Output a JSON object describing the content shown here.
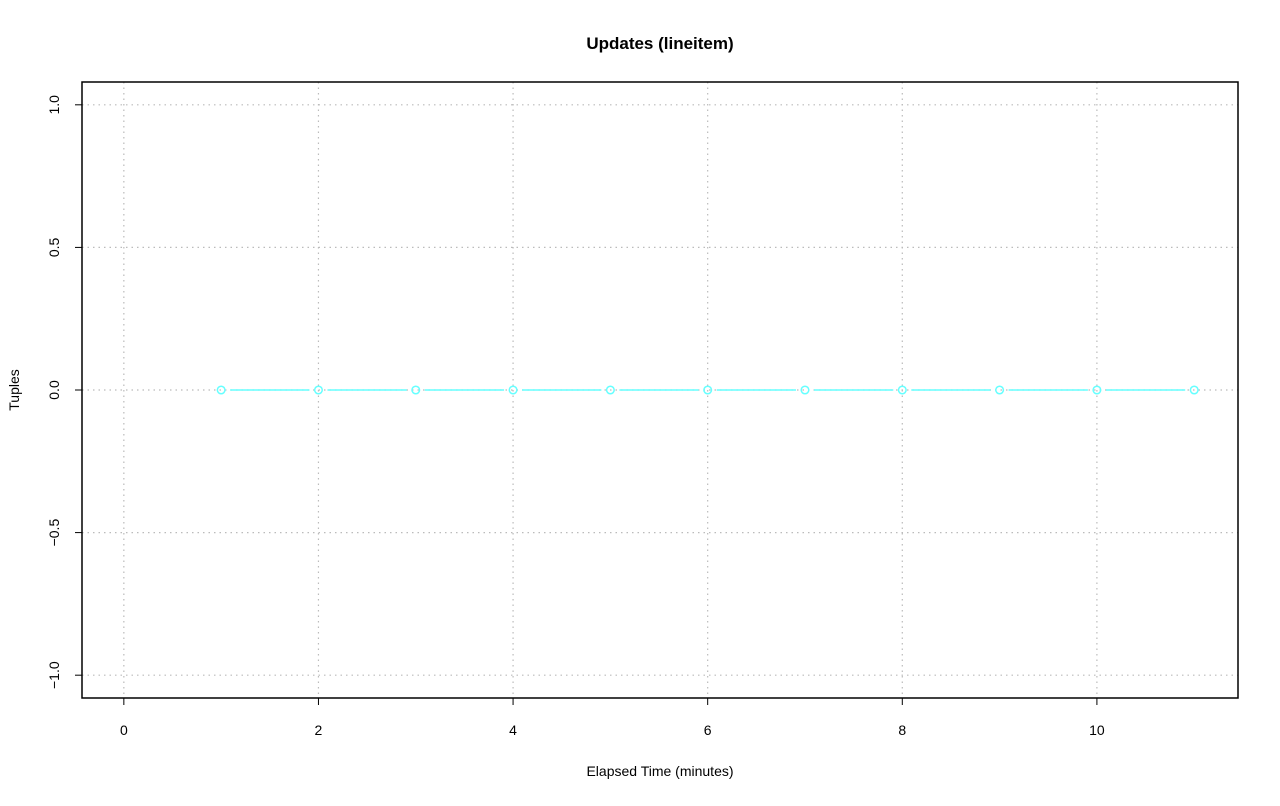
{
  "chart_data": {
    "type": "line",
    "title": "Updates (lineitem)",
    "xlabel": "Elapsed Time (minutes)",
    "ylabel": "Tuples",
    "xlim": [
      -0.43,
      11.45
    ],
    "ylim": [
      -1.08,
      1.08
    ],
    "x_ticks": [
      0,
      2,
      4,
      6,
      8,
      10
    ],
    "y_ticks": [
      -1.0,
      -0.5,
      0.0,
      0.5,
      1.0
    ],
    "x_tick_labels": [
      "0",
      "2",
      "4",
      "6",
      "8",
      "10"
    ],
    "y_tick_labels": [
      "−1.0",
      "−0.5",
      "0.0",
      "0.5",
      "1.0"
    ],
    "grid": true,
    "grid_x": [
      0,
      2,
      4,
      6,
      8,
      10
    ],
    "grid_y": [
      -1.0,
      -0.5,
      0.0,
      0.5,
      1.0
    ],
    "series": [
      {
        "color": "#66ffff",
        "marker": "open-circle",
        "x": [
          1,
          2,
          3,
          4,
          5,
          6,
          7,
          8,
          9,
          10,
          11
        ],
        "y": [
          0,
          0,
          0,
          0,
          0,
          0,
          0,
          0,
          0,
          0,
          0
        ]
      }
    ]
  }
}
